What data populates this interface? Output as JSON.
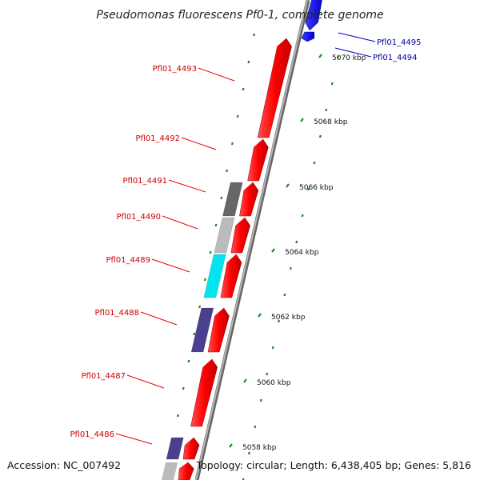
{
  "title": "Pseudomonas fluorescens Pf0-1, complete genome",
  "footer": {
    "accession": "Accession: NC_007492",
    "summary": "Topology: circular; Length: 6,438,405 bp; Genes: 5,816"
  },
  "colors": {
    "forward_gene": "#ff0000",
    "reverse_gene": "#0000ff",
    "forward_label": "#cc0000",
    "reverse_label": "#000099",
    "tick": "#1a8a1a",
    "backbone": "#888888"
  },
  "ruler": {
    "ticks": [
      {
        "label": "5058 kbp"
      },
      {
        "label": "5060 kbp"
      },
      {
        "label": "5062 kbp"
      },
      {
        "label": "5064 kbp"
      },
      {
        "label": "5066 kbp"
      },
      {
        "label": "5068 kbp"
      },
      {
        "label": "5070 kbp"
      }
    ]
  },
  "genes": [
    {
      "name": "Pfl01_4495",
      "strand": "reverse"
    },
    {
      "name": "Pfl01_4494",
      "strand": "reverse"
    },
    {
      "name": "Pfl01_4493",
      "strand": "forward"
    },
    {
      "name": "Pfl01_4492",
      "strand": "forward"
    },
    {
      "name": "Pfl01_4491",
      "strand": "forward",
      "cog_color": "#666666"
    },
    {
      "name": "Pfl01_4490",
      "strand": "forward",
      "cog_color": "#bbbbbb"
    },
    {
      "name": "Pfl01_4489",
      "strand": "forward",
      "cog_color": "#00e5ee"
    },
    {
      "name": "Pfl01_4488",
      "strand": "forward",
      "cog_color": "#4b3f8f"
    },
    {
      "name": "Pfl01_4487",
      "strand": "forward"
    },
    {
      "name": "Pfl01_4486",
      "strand": "forward",
      "cog_color": "#4b3f8f"
    }
  ]
}
